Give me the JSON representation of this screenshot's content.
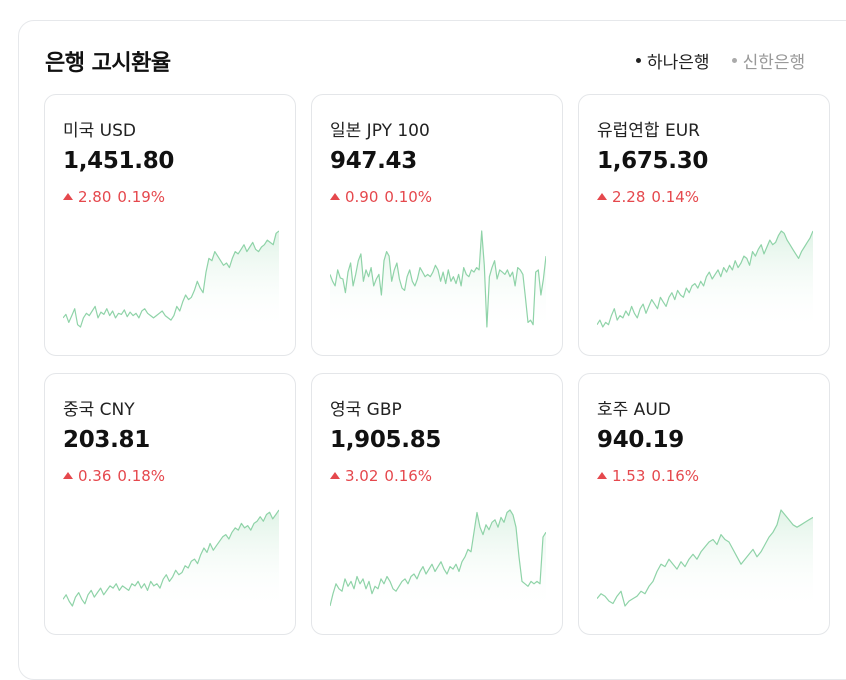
{
  "title": "은행 고시환율",
  "banks": [
    {
      "label": "하나은행",
      "active": true
    },
    {
      "label": "신한은행",
      "active": false
    }
  ],
  "colors": {
    "up": "#e5484d",
    "spark_line": "#8fd3a8",
    "spark_fill": "#dff3e6"
  },
  "cards": [
    {
      "name": "미국 USD",
      "rate": "1,451.80",
      "direction": "up",
      "change": "2.80",
      "pct": "0.19%",
      "spark": [
        22,
        25,
        18,
        24,
        30,
        16,
        14,
        22,
        26,
        24,
        28,
        32,
        22,
        27,
        25,
        30,
        24,
        28,
        22,
        26,
        25,
        29,
        23,
        27,
        24,
        26,
        22,
        28,
        30,
        26,
        24,
        22,
        24,
        26,
        28,
        24,
        22,
        20,
        24,
        32,
        28,
        36,
        42,
        38,
        40,
        46,
        54,
        48,
        44,
        62,
        74,
        72,
        80,
        76,
        72,
        68,
        70,
        66,
        74,
        80,
        78,
        82,
        86,
        80,
        84,
        88,
        82,
        80,
        84,
        86,
        90,
        88,
        86,
        96,
        98
      ]
    },
    {
      "name": "일본 JPY 100",
      "rate": "947.43",
      "direction": "up",
      "change": "0.90",
      "pct": "0.10%",
      "spark": [
        58,
        52,
        48,
        62,
        55,
        54,
        42,
        60,
        68,
        48,
        58,
        70,
        76,
        52,
        62,
        56,
        64,
        48,
        54,
        58,
        40,
        70,
        78,
        74,
        52,
        62,
        68,
        54,
        46,
        44,
        56,
        62,
        52,
        48,
        54,
        64,
        60,
        56,
        58,
        56,
        60,
        66,
        62,
        52,
        60,
        50,
        62,
        52,
        56,
        50,
        58,
        48,
        64,
        58,
        56,
        62,
        60,
        64,
        62,
        96,
        66,
        12,
        56,
        64,
        70,
        54,
        62,
        60,
        58,
        62,
        56,
        60,
        48,
        64,
        62,
        58,
        38,
        16,
        18,
        14,
        60,
        62,
        40,
        54,
        74
      ]
    },
    {
      "name": "유럽연합 EUR",
      "rate": "1,675.30",
      "direction": "up",
      "change": "2.28",
      "pct": "0.14%",
      "spark": [
        14,
        18,
        12,
        16,
        14,
        22,
        28,
        18,
        22,
        20,
        26,
        22,
        30,
        24,
        20,
        28,
        32,
        24,
        30,
        36,
        32,
        28,
        38,
        34,
        30,
        38,
        42,
        36,
        44,
        40,
        38,
        46,
        42,
        48,
        50,
        46,
        52,
        48,
        56,
        60,
        54,
        58,
        62,
        56,
        64,
        60,
        66,
        62,
        70,
        64,
        68,
        74,
        72,
        66,
        78,
        74,
        80,
        84,
        76,
        82,
        88,
        84,
        86,
        92,
        96,
        94,
        88,
        84,
        80,
        76,
        72,
        78,
        82,
        86,
        90,
        96
      ]
    },
    {
      "name": "중국 CNY",
      "rate": "203.81",
      "direction": "up",
      "change": "0.36",
      "pct": "0.18%",
      "spark": [
        20,
        24,
        18,
        14,
        22,
        26,
        20,
        16,
        24,
        28,
        22,
        26,
        30,
        24,
        28,
        32,
        30,
        34,
        28,
        32,
        30,
        28,
        34,
        32,
        36,
        30,
        34,
        28,
        36,
        32,
        34,
        30,
        38,
        42,
        36,
        40,
        46,
        42,
        44,
        50,
        48,
        54,
        56,
        52,
        60,
        66,
        62,
        70,
        64,
        68,
        72,
        76,
        78,
        74,
        80,
        84,
        82,
        88,
        84,
        86,
        82,
        88,
        90,
        94,
        90,
        96,
        98,
        92,
        96,
        100
      ]
    },
    {
      "name": "영국 GBP",
      "rate": "1,905.85",
      "direction": "up",
      "change": "3.02",
      "pct": "0.16%",
      "spark": [
        16,
        26,
        34,
        30,
        28,
        38,
        32,
        36,
        30,
        40,
        34,
        38,
        30,
        36,
        26,
        32,
        30,
        38,
        34,
        40,
        36,
        30,
        28,
        32,
        36,
        38,
        34,
        40,
        42,
        38,
        44,
        48,
        42,
        46,
        50,
        44,
        48,
        52,
        46,
        42,
        48,
        46,
        50,
        44,
        52,
        56,
        62,
        60,
        76,
        92,
        80,
        74,
        82,
        78,
        84,
        86,
        80,
        88,
        84,
        92,
        94,
        90,
        80,
        56,
        36,
        34,
        32,
        36,
        34,
        36,
        34,
        72,
        76
      ]
    },
    {
      "name": "호주 AUD",
      "rate": "940.19",
      "direction": "up",
      "change": "1.53",
      "pct": "0.16%",
      "spark": [
        24,
        28,
        26,
        22,
        20,
        26,
        30,
        18,
        22,
        24,
        26,
        30,
        28,
        34,
        38,
        46,
        52,
        50,
        56,
        52,
        48,
        54,
        50,
        56,
        60,
        56,
        62,
        66,
        70,
        72,
        68,
        76,
        72,
        70,
        64,
        58,
        52,
        56,
        60,
        64,
        58,
        62,
        68,
        74,
        78,
        84,
        96,
        92,
        88,
        84,
        82,
        84,
        86,
        88,
        90
      ]
    }
  ]
}
